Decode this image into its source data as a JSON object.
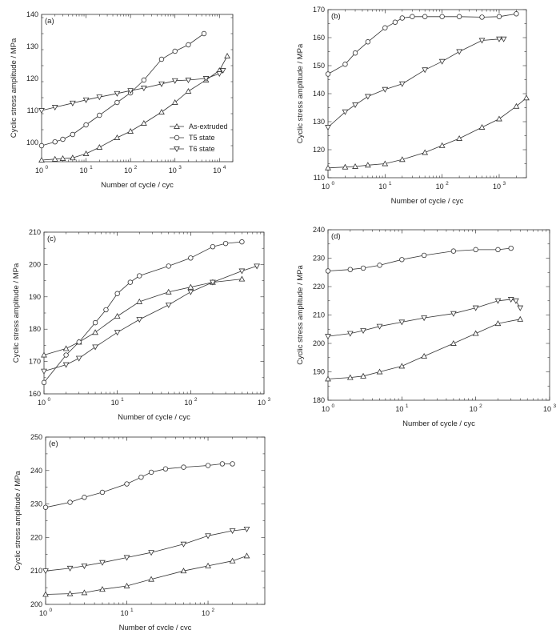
{
  "chart_data": [
    {
      "type": "line",
      "panel_label": "(a)",
      "xlabel": "Number of cycle / cyc",
      "ylabel": "Cyclic stress amplitude / MPa",
      "xscale": "log",
      "xlim": [
        1,
        20000
      ],
      "ylim": [
        94,
        140
      ],
      "xticks": [
        1,
        10,
        100,
        1000,
        10000
      ],
      "xtick_labels": [
        [
          "10",
          "0"
        ],
        [
          "10",
          "1"
        ],
        [
          "10",
          "2"
        ],
        [
          "10",
          "3"
        ],
        [
          "10",
          "4"
        ]
      ],
      "yticks": [
        100,
        110,
        120,
        130,
        140
      ],
      "ytick_labels": [
        "100",
        "110",
        "120",
        "130",
        "140"
      ],
      "legend": {
        "position": "center-right",
        "entries": [
          "As-extruded",
          "T5 state",
          "T6 state"
        ]
      },
      "series": [
        {
          "name": "As-extruded",
          "marker": "triangle-up",
          "x": [
            1,
            2,
            3,
            5,
            10,
            20,
            50,
            100,
            200,
            500,
            1000,
            2000,
            5000,
            10000,
            15000
          ],
          "y": [
            94.5,
            94.8,
            95.0,
            95.2,
            96.5,
            98.5,
            101.5,
            103.5,
            106.0,
            109.5,
            112.5,
            116.0,
            119.5,
            122.5,
            127.0
          ]
        },
        {
          "name": "T5 state",
          "marker": "circle",
          "x": [
            1,
            2,
            3,
            5,
            10,
            20,
            50,
            100,
            200,
            500,
            1000,
            2000,
            4500
          ],
          "y": [
            99.0,
            100.2,
            101.0,
            102.5,
            105.5,
            108.5,
            112.5,
            115.5,
            119.5,
            126.0,
            128.5,
            130.5,
            134.0
          ]
        },
        {
          "name": "T6 state",
          "marker": "triangle-down",
          "x": [
            1,
            2,
            5,
            10,
            20,
            50,
            100,
            200,
            500,
            1000,
            2000,
            5000,
            10000,
            12000
          ],
          "y": [
            110.0,
            111.0,
            112.3,
            113.3,
            114.2,
            115.3,
            116.2,
            117.0,
            118.3,
            119.3,
            119.5,
            120.0,
            121.5,
            122.5
          ]
        }
      ]
    },
    {
      "type": "line",
      "panel_label": "(b)",
      "xlabel": "Number of cycle / cyc",
      "ylabel": "Cyclic stress amplitude / MPa",
      "xscale": "log",
      "xlim": [
        1,
        3000
      ],
      "ylim": [
        110,
        170
      ],
      "xticks": [
        1,
        10,
        100,
        1000
      ],
      "xtick_labels": [
        [
          "10",
          "0"
        ],
        [
          "10",
          "1"
        ],
        [
          "10",
          "2"
        ],
        [
          "10",
          "3"
        ]
      ],
      "yticks": [
        110,
        120,
        130,
        140,
        150,
        160,
        170
      ],
      "ytick_labels": [
        "110",
        "120",
        "130",
        "140",
        "150",
        "160",
        "170"
      ],
      "series": [
        {
          "name": "As-extruded",
          "marker": "triangle-up",
          "x": [
            1,
            2,
            3,
            5,
            10,
            20,
            50,
            100,
            200,
            500,
            1000,
            2000,
            3000
          ],
          "y": [
            113.5,
            113.8,
            114.0,
            114.5,
            115.0,
            116.5,
            119.0,
            121.5,
            124.0,
            128.0,
            131.0,
            135.5,
            138.5
          ]
        },
        {
          "name": "T5 state",
          "marker": "circle",
          "x": [
            1,
            2,
            3,
            5,
            10,
            15,
            20,
            30,
            50,
            100,
            200,
            500,
            1000,
            2000
          ],
          "y": [
            147.0,
            150.5,
            154.5,
            158.5,
            163.5,
            165.5,
            167.0,
            167.5,
            167.5,
            167.5,
            167.5,
            167.3,
            167.5,
            168.5
          ]
        },
        {
          "name": "T6 state",
          "marker": "triangle-down",
          "x": [
            1,
            2,
            3,
            5,
            10,
            20,
            50,
            100,
            200,
            500,
            1000,
            1200
          ],
          "y": [
            128.0,
            133.5,
            136.0,
            139.0,
            141.5,
            143.5,
            148.5,
            151.5,
            155.0,
            159.0,
            159.5,
            159.5
          ]
        }
      ]
    },
    {
      "type": "line",
      "panel_label": "(c)",
      "xlabel": "Number of cycle / cyc",
      "ylabel": "Cyclic stress amplitude / MPa",
      "xscale": "log",
      "xlim": [
        1,
        1000
      ],
      "ylim": [
        160,
        210
      ],
      "xticks": [
        1,
        10,
        100,
        1000
      ],
      "xtick_labels": [
        [
          "10",
          "0"
        ],
        [
          "10",
          "1"
        ],
        [
          "10",
          "2"
        ],
        [
          "10",
          "3"
        ]
      ],
      "yticks": [
        160,
        170,
        180,
        190,
        200,
        210
      ],
      "ytick_labels": [
        "160",
        "170",
        "180",
        "190",
        "200",
        "210"
      ],
      "series": [
        {
          "name": "As-extruded",
          "marker": "triangle-up",
          "x": [
            1,
            2,
            3,
            5,
            10,
            20,
            50,
            100,
            200,
            500
          ],
          "y": [
            172.0,
            174.0,
            176.0,
            179.0,
            184.0,
            188.5,
            191.5,
            193.0,
            194.5,
            195.5
          ]
        },
        {
          "name": "T5 state",
          "marker": "circle",
          "x": [
            1,
            2,
            3,
            5,
            7,
            10,
            15,
            20,
            50,
            100,
            200,
            300,
            500
          ],
          "y": [
            163.5,
            172.0,
            176.0,
            182.0,
            186.0,
            191.0,
            194.5,
            196.5,
            199.5,
            202.0,
            205.5,
            206.5,
            207.0
          ]
        },
        {
          "name": "T6 state",
          "marker": "triangle-down",
          "x": [
            1,
            2,
            3,
            5,
            10,
            20,
            50,
            100,
            200,
            500,
            800
          ],
          "y": [
            167.0,
            169.0,
            171.0,
            174.5,
            179.0,
            183.0,
            187.5,
            191.5,
            194.5,
            198.0,
            199.5
          ]
        }
      ]
    },
    {
      "type": "line",
      "panel_label": "(d)",
      "xlabel": "Number of cycle / cyc",
      "ylabel": "Cyclic stress amplitude / MPa",
      "xscale": "log",
      "xlim": [
        1,
        1000
      ],
      "ylim": [
        180,
        240
      ],
      "xticks": [
        1,
        10,
        100,
        1000
      ],
      "xtick_labels": [
        [
          "10",
          "0"
        ],
        [
          "10",
          "1"
        ],
        [
          "10",
          "2"
        ],
        [
          "10",
          "3"
        ]
      ],
      "yticks": [
        180,
        190,
        200,
        210,
        220,
        230,
        240
      ],
      "ytick_labels": [
        "180",
        "190",
        "200",
        "210",
        "220",
        "230",
        "240"
      ],
      "series": [
        {
          "name": "As-extruded",
          "marker": "triangle-up",
          "x": [
            1,
            2,
            3,
            5,
            10,
            20,
            50,
            100,
            200,
            400
          ],
          "y": [
            187.5,
            188.0,
            188.5,
            190.0,
            192.0,
            195.5,
            200.0,
            203.5,
            207.0,
            208.5
          ]
        },
        {
          "name": "T5 state",
          "marker": "circle",
          "x": [
            1,
            2,
            3,
            5,
            10,
            20,
            50,
            100,
            200,
            300
          ],
          "y": [
            225.5,
            226.0,
            226.5,
            227.5,
            229.5,
            231.0,
            232.5,
            233.0,
            233.0,
            233.5
          ]
        },
        {
          "name": "T6 state",
          "marker": "triangle-down",
          "x": [
            1,
            2,
            3,
            5,
            10,
            20,
            50,
            100,
            200,
            300,
            350,
            400
          ],
          "y": [
            202.5,
            203.5,
            204.5,
            206.0,
            207.5,
            209.0,
            210.5,
            212.5,
            215.0,
            215.5,
            215.0,
            212.5
          ]
        }
      ]
    },
    {
      "type": "line",
      "panel_label": "(e)",
      "xlabel": "Number of cycle / cyc",
      "ylabel": "Cyclic stress amplitude / MPa",
      "xscale": "log",
      "xlim": [
        1,
        500
      ],
      "ylim": [
        200,
        250
      ],
      "xticks": [
        1,
        10,
        100
      ],
      "xtick_labels": [
        [
          "10",
          "0"
        ],
        [
          "10",
          "1"
        ],
        [
          "10",
          "2"
        ]
      ],
      "yticks": [
        200,
        210,
        220,
        230,
        240,
        250
      ],
      "ytick_labels": [
        "200",
        "210",
        "220",
        "230",
        "240",
        "250"
      ],
      "series": [
        {
          "name": "As-extruded",
          "marker": "triangle-up",
          "x": [
            1,
            2,
            3,
            5,
            10,
            20,
            50,
            100,
            200,
            300
          ],
          "y": [
            203.0,
            203.2,
            203.5,
            204.5,
            205.5,
            207.5,
            210.0,
            211.5,
            213.0,
            214.5
          ]
        },
        {
          "name": "T5 state",
          "marker": "circle",
          "x": [
            1,
            2,
            3,
            5,
            10,
            15,
            20,
            30,
            50,
            100,
            150,
            200
          ],
          "y": [
            229.0,
            230.5,
            232.0,
            233.5,
            236.0,
            238.0,
            239.5,
            240.5,
            241.0,
            241.5,
            242.0,
            242.0
          ]
        },
        {
          "name": "T6 state",
          "marker": "triangle-down",
          "x": [
            1,
            2,
            3,
            5,
            10,
            20,
            50,
            100,
            200,
            300
          ],
          "y": [
            210.0,
            210.8,
            211.5,
            212.5,
            214.0,
            215.5,
            218.0,
            220.5,
            222.0,
            222.5
          ]
        }
      ]
    }
  ]
}
